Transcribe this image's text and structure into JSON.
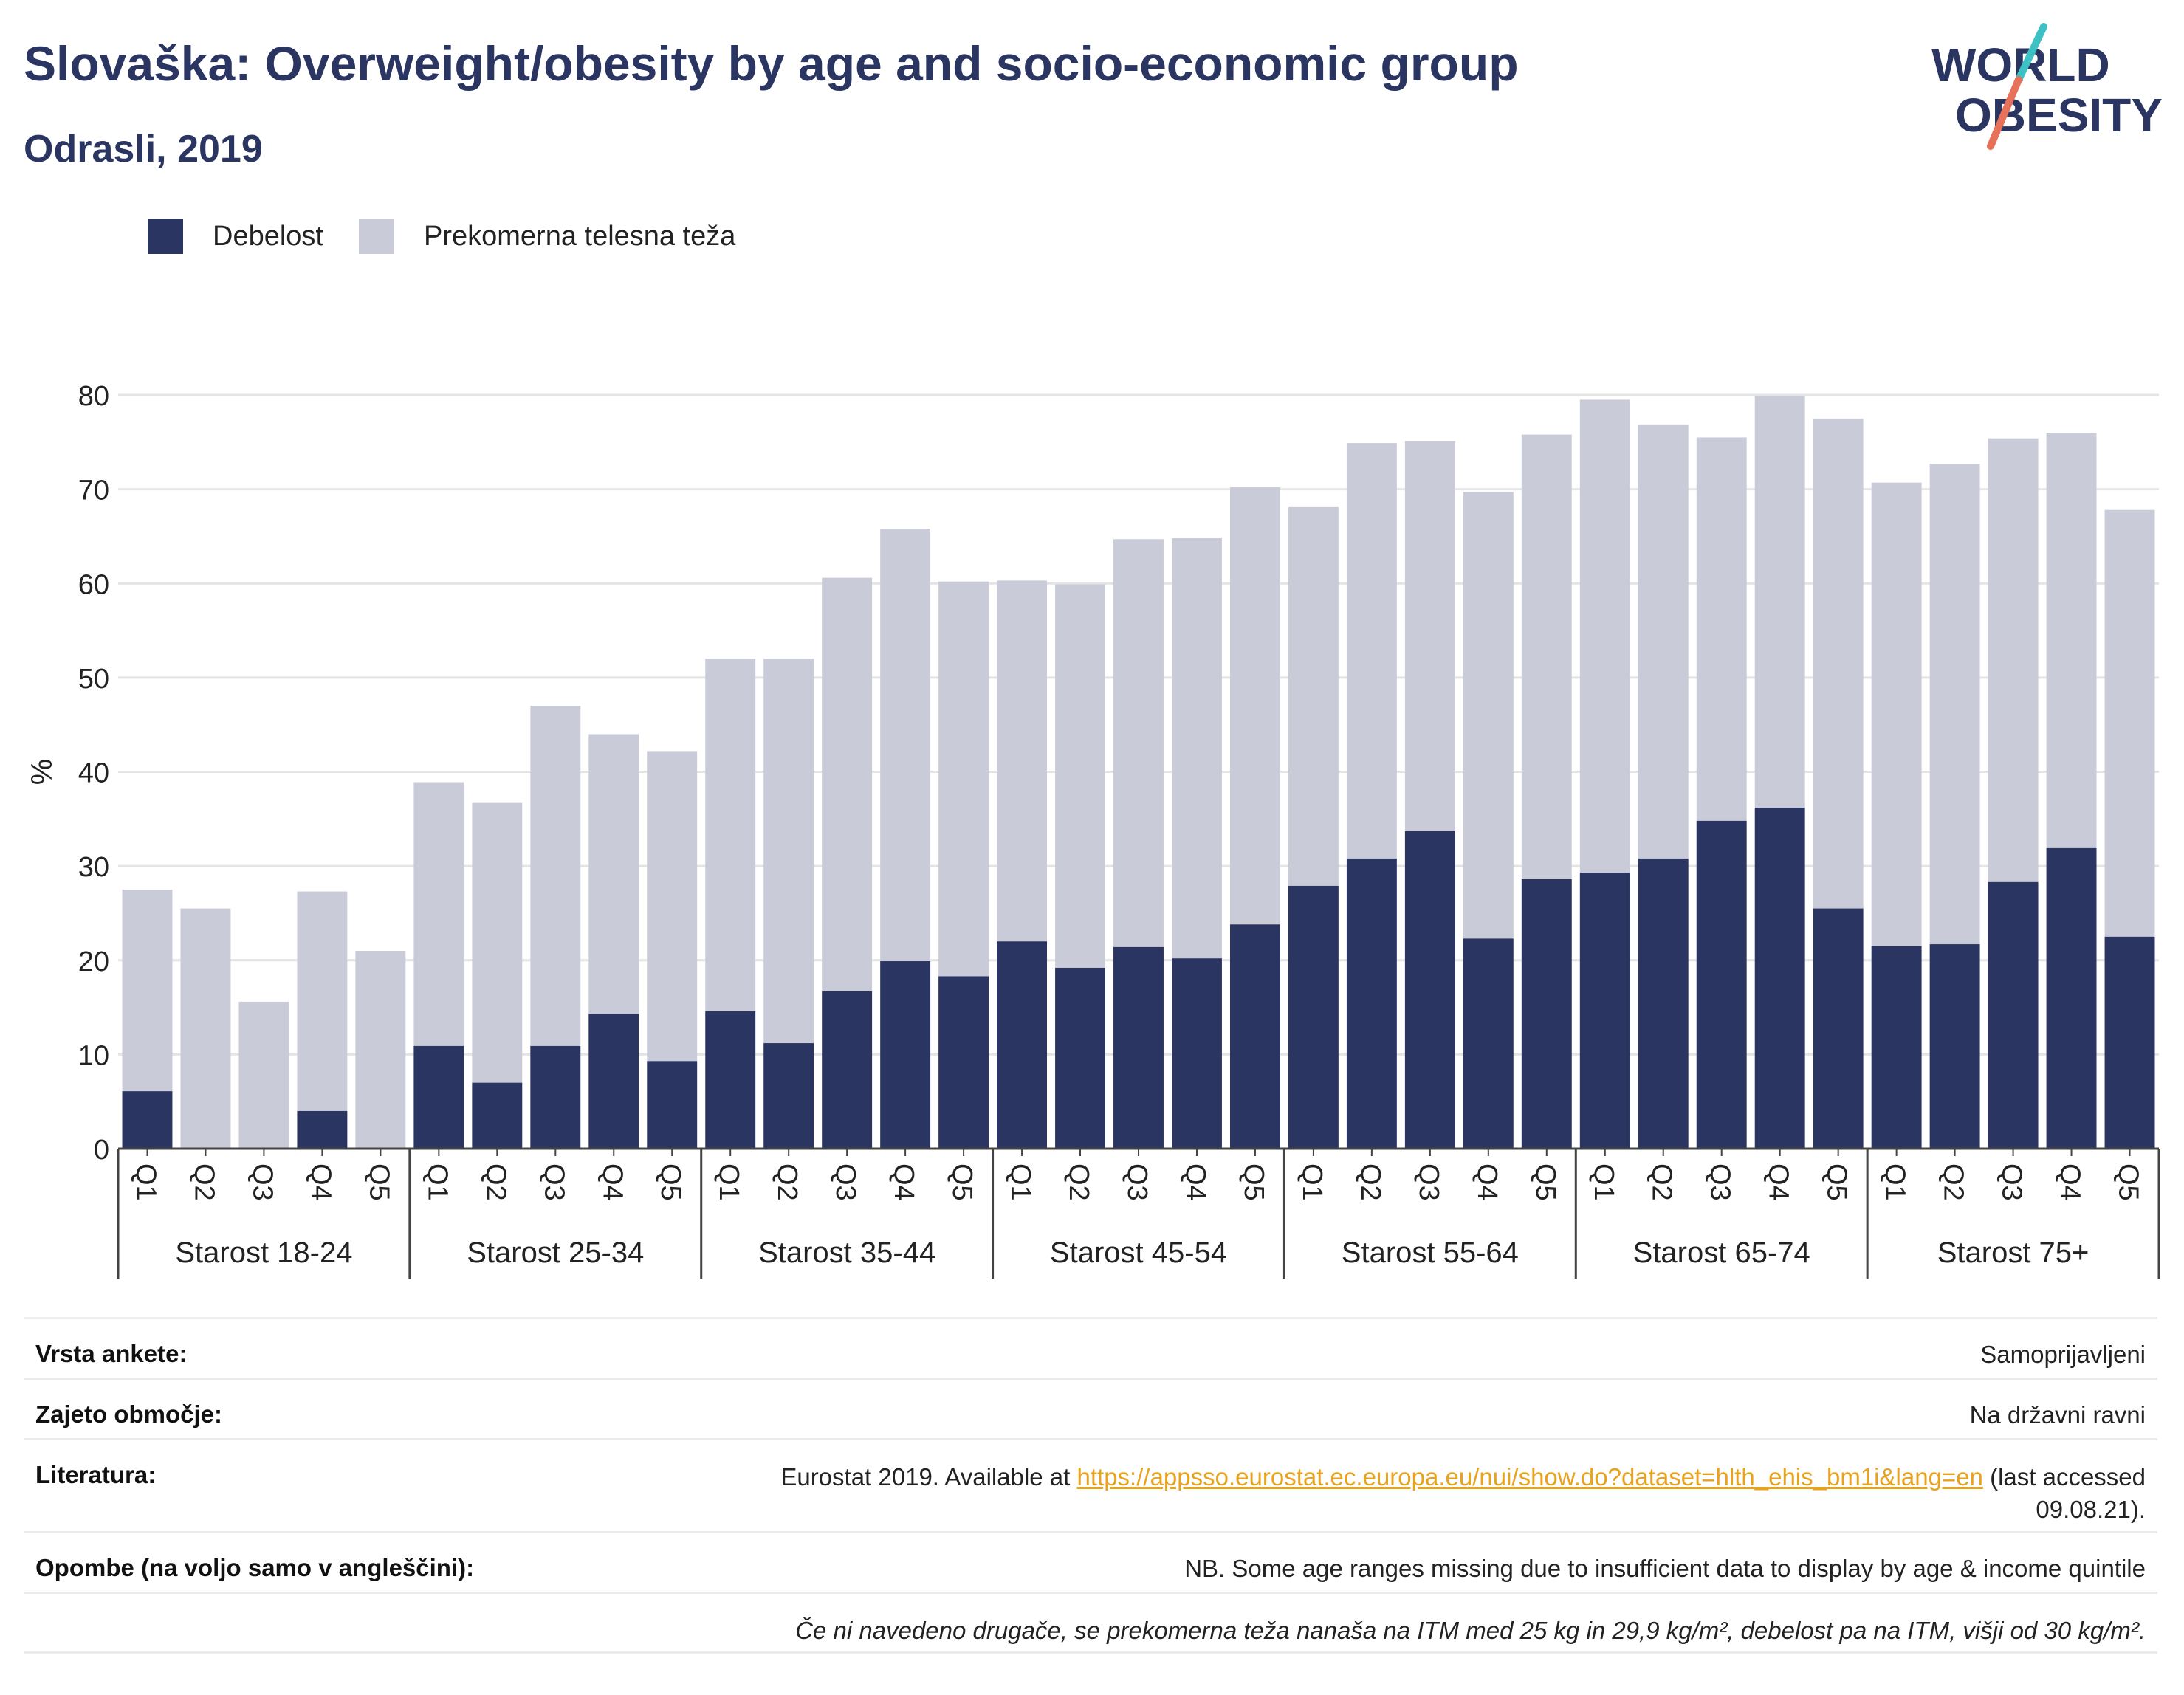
{
  "header": {
    "title": "Slovaška: Overweight/obesity by age and socio-economic group",
    "subtitle": "Odrasli, 2019"
  },
  "logo": {
    "line1": "WORLD",
    "line2": "OBESITY"
  },
  "colors": {
    "obesity": "#2a3561",
    "overweight": "#cacbd8",
    "title": "#2a3561",
    "link": "#e8a21b"
  },
  "chart_data": {
    "type": "bar",
    "stacked": true,
    "ylabel": "%",
    "xlabel": "",
    "ylim": [
      0,
      80
    ],
    "yticks": [
      0,
      10,
      20,
      30,
      40,
      50,
      60,
      70,
      80
    ],
    "grid": true,
    "legend_position": "top-left",
    "groups": [
      "Starost 18-24",
      "Starost 25-34",
      "Starost 35-44",
      "Starost 45-54",
      "Starost 55-64",
      "Starost 65-74",
      "Starost 75+"
    ],
    "quintiles": [
      "Q1",
      "Q2",
      "Q3",
      "Q4",
      "Q5"
    ],
    "series": [
      {
        "name": "Debelost",
        "values": [
          6.1,
          0,
          0,
          4.0,
          0,
          10.9,
          7.0,
          10.9,
          14.3,
          9.3,
          14.6,
          11.2,
          16.7,
          19.9,
          18.3,
          22.0,
          19.2,
          21.4,
          20.2,
          23.8,
          27.9,
          30.8,
          33.7,
          22.3,
          28.6,
          29.3,
          30.8,
          34.8,
          36.2,
          25.5,
          21.5,
          21.7,
          28.3,
          31.9,
          22.5
        ]
      },
      {
        "name": "Prekomerna telesna teža",
        "values": [
          21.4,
          25.5,
          15.6,
          23.3,
          21.0,
          28.0,
          29.7,
          36.1,
          29.7,
          32.9,
          37.4,
          40.8,
          43.9,
          45.9,
          41.9,
          38.3,
          40.7,
          43.3,
          44.6,
          46.4,
          40.2,
          44.1,
          41.4,
          47.4,
          47.2,
          50.2,
          46.0,
          40.7,
          43.7,
          52.0,
          49.2,
          51.0,
          47.1,
          44.1,
          45.3
        ]
      }
    ]
  },
  "meta": {
    "survey_label": "Vrsta ankete:",
    "survey_value": "Samoprijavljeni",
    "coverage_label": "Zajeto območje:",
    "coverage_value": "Na državni ravni",
    "reference_label": "Literatura:",
    "reference_prefix": "Eurostat 2019. Available at ",
    "reference_link": "https://appsso.eurostat.ec.europa.eu/nui/show.do?dataset=hlth_ehis_bm1i&lang=en",
    "reference_suffix": " (last accessed 09.08.21).",
    "notes_label": "Opombe (na voljo samo v angleščini):",
    "notes_value": "NB. Some age ranges missing due to insufficient data to display by age & income quintile",
    "definition": "Če ni navedeno drugače, se prekomerna teža nanaša na ITM med 25 kg in 29,9 kg/m², debelost pa na ITM, višji od 30 kg/m²."
  }
}
